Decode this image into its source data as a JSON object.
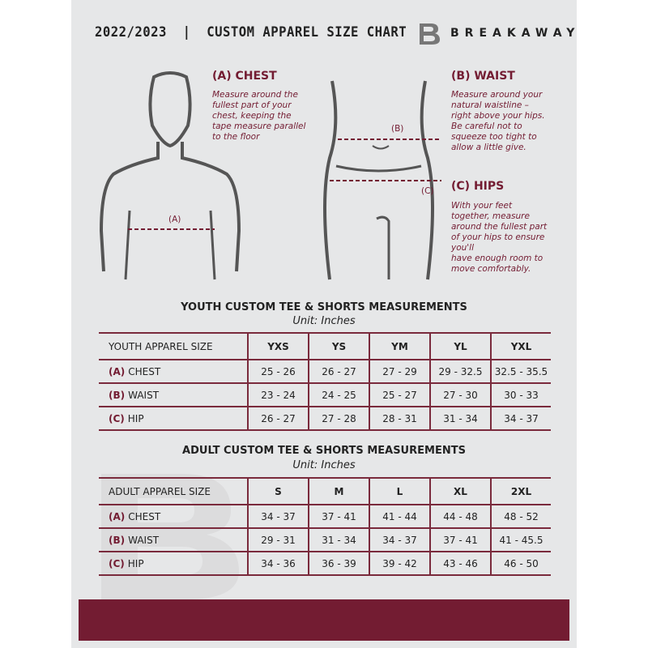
{
  "header": {
    "title": "2022/2023  |  CUSTOM APPAREL SIZE CHART",
    "brand": "BREAKAWAY",
    "logo_letter": "B"
  },
  "colors": {
    "accent": "#731c32",
    "background": "#e6e7e8"
  },
  "measures": {
    "chest": {
      "heading": "(A) CHEST",
      "label": "(A)",
      "text": [
        "Measure around the",
        "fullest part of your",
        "chest, keeping the",
        "tape measure parallel",
        "to the floor"
      ]
    },
    "waist": {
      "heading": "(B) WAIST",
      "label": "(B)",
      "text": [
        "Measure around your",
        "natural waistline –",
        "right above your hips.",
        "Be careful not to",
        "squeeze too tight to",
        "allow a little give."
      ]
    },
    "hips": {
      "heading": "(C) HIPS",
      "label": "(C)",
      "text": [
        "With your feet",
        "together, measure",
        "around the fullest part",
        "of your hips to ensure",
        "you'll",
        "have enough room to",
        "move comfortably."
      ]
    }
  },
  "tables": [
    {
      "title": "YOUTH CUSTOM TEE & SHORTS MEASUREMENTS",
      "unit": "Unit: Inches",
      "size_header": "YOUTH APPAREL SIZE",
      "sizes": [
        "YXS",
        "YS",
        "YM",
        "YL",
        "YXL"
      ],
      "rows": [
        {
          "code": "(A)",
          "name": "CHEST",
          "values": [
            "25 - 26",
            "26 - 27",
            "27 - 29",
            "29 - 32.5",
            "32.5 - 35.5"
          ]
        },
        {
          "code": "(B)",
          "name": "WAIST",
          "values": [
            "23 - 24",
            "24 - 25",
            "25 - 27",
            "27 - 30",
            "30 - 33"
          ]
        },
        {
          "code": "(C)",
          "name": "HIP",
          "values": [
            "26 - 27",
            "27 - 28",
            "28 - 31",
            "31 - 34",
            "34 - 37"
          ]
        }
      ]
    },
    {
      "title": "ADULT CUSTOM TEE & SHORTS MEASUREMENTS",
      "unit": "Unit: Inches",
      "size_header": "ADULT APPAREL SIZE",
      "sizes": [
        "S",
        "M",
        "L",
        "XL",
        "2XL"
      ],
      "rows": [
        {
          "code": "(A)",
          "name": "CHEST",
          "values": [
            "34 - 37",
            "37 - 41",
            "41 - 44",
            "44 - 48",
            "48 - 52"
          ]
        },
        {
          "code": "(B)",
          "name": "WAIST",
          "values": [
            "29 - 31",
            "31 - 34",
            "34 - 37",
            "37 - 41",
            "41 - 45.5"
          ]
        },
        {
          "code": "(C)",
          "name": "HIP",
          "values": [
            "34 - 36",
            "36 - 39",
            "39 - 42",
            "43 - 46",
            "46 - 50"
          ]
        }
      ]
    }
  ]
}
